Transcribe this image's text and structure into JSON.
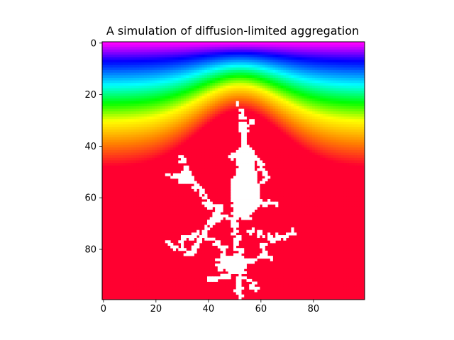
{
  "chart_data": {
    "type": "heatmap",
    "title": "A simulation of diffusion-limited aggregation",
    "xlabel": "",
    "ylabel": "",
    "grid_size": 100,
    "xlim": [
      -0.5,
      99.5
    ],
    "ylim": [
      99.5,
      -0.5
    ],
    "x_ticks": [
      0,
      20,
      40,
      60,
      80
    ],
    "y_ticks": [
      0,
      20,
      40,
      60,
      80
    ],
    "x_tick_labels": [
      "0",
      "20",
      "40",
      "60",
      "80"
    ],
    "y_tick_labels": [
      "0",
      "20",
      "40",
      "60",
      "80"
    ],
    "colormap": "hsv",
    "colormap_anchors": [
      {
        "v": 0.0,
        "color": "#ff00ff"
      },
      {
        "v": 0.12,
        "color": "#0000ff"
      },
      {
        "v": 0.3,
        "color": "#00ffff"
      },
      {
        "v": 0.45,
        "color": "#00ff00"
      },
      {
        "v": 0.6,
        "color": "#ffff00"
      },
      {
        "v": 0.8,
        "color": "#ff8000"
      },
      {
        "v": 1.0,
        "color": "#ff0030"
      }
    ],
    "field_description_rows": {
      "magenta_top": 0,
      "blue_row": 8,
      "cyan_row": 14,
      "green_row": 22
    },
    "aggregate_color": "#ffffff",
    "aggregate_seed": {
      "x": 52,
      "y": 99
    },
    "aggregate_top": {
      "x": 52,
      "y": 25
    },
    "aggregate_branches": [
      {
        "from": [
          52,
          99
        ],
        "to": [
          52,
          85
        ]
      },
      {
        "from": [
          52,
          85
        ],
        "to": [
          50,
          70
        ]
      },
      {
        "from": [
          50,
          70
        ],
        "to": [
          53,
          55
        ]
      },
      {
        "from": [
          53,
          55
        ],
        "to": [
          54,
          42
        ]
      },
      {
        "from": [
          54,
          42
        ],
        "to": [
          52,
          25
        ]
      },
      {
        "from": [
          50,
          70
        ],
        "to": [
          40,
          62
        ]
      },
      {
        "from": [
          40,
          62
        ],
        "to": [
          33,
          52
        ]
      },
      {
        "from": [
          33,
          52
        ],
        "to": [
          30,
          44
        ]
      },
      {
        "from": [
          33,
          52
        ],
        "to": [
          26,
          51
        ]
      },
      {
        "from": [
          44,
          66
        ],
        "to": [
          38,
          74
        ]
      },
      {
        "from": [
          38,
          74
        ],
        "to": [
          34,
          82
        ]
      },
      {
        "from": [
          34,
          82
        ],
        "to": [
          25,
          78
        ]
      },
      {
        "from": [
          38,
          74
        ],
        "to": [
          46,
          80
        ]
      },
      {
        "from": [
          46,
          80
        ],
        "to": [
          44,
          88
        ]
      },
      {
        "from": [
          52,
          85
        ],
        "to": [
          58,
          84
        ]
      },
      {
        "from": [
          56,
          72
        ],
        "to": [
          64,
          76
        ]
      },
      {
        "from": [
          64,
          76
        ],
        "to": [
          73,
          74
        ]
      },
      {
        "from": [
          60,
          78
        ],
        "to": [
          63,
          84
        ]
      },
      {
        "from": [
          56,
          62
        ],
        "to": [
          66,
          62
        ]
      },
      {
        "from": [
          54,
          42
        ],
        "to": [
          48,
          44
        ]
      },
      {
        "from": [
          54,
          42
        ],
        "to": [
          60,
          46
        ]
      },
      {
        "from": [
          60,
          46
        ],
        "to": [
          62,
          54
        ]
      },
      {
        "from": [
          52,
          34
        ],
        "to": [
          57,
          30
        ]
      },
      {
        "from": [
          48,
          90
        ],
        "to": [
          40,
          92
        ]
      },
      {
        "from": [
          56,
          92
        ],
        "to": [
          58,
          96
        ]
      },
      {
        "from": [
          44,
          62
        ],
        "to": [
          42,
          70
        ]
      },
      {
        "from": [
          36,
          74
        ],
        "to": [
          30,
          76
        ]
      }
    ],
    "aggregate_blobs": [
      {
        "cx": 54,
        "cy": 58,
        "rx": 6,
        "ry": 11
      },
      {
        "cx": 54,
        "cy": 45,
        "rx": 4,
        "ry": 6
      },
      {
        "cx": 50,
        "cy": 86,
        "rx": 5,
        "ry": 4
      },
      {
        "cx": 31,
        "cy": 52,
        "rx": 3,
        "ry": 3
      }
    ]
  }
}
